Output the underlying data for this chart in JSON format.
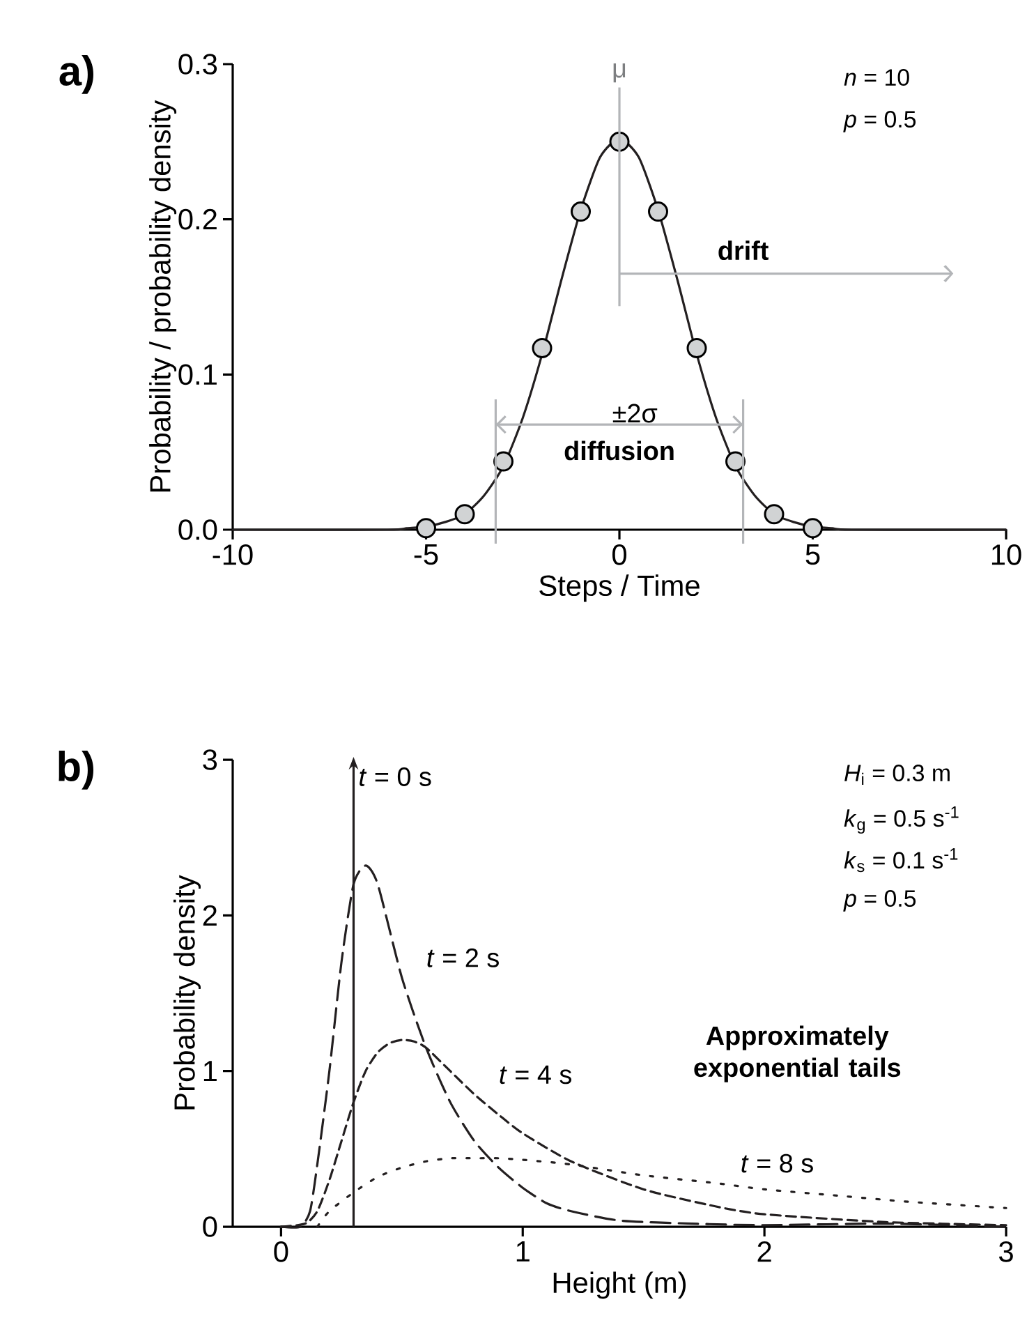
{
  "chart_data": [
    {
      "type": "line",
      "title": "a)",
      "xlabel": "Steps / Time",
      "ylabel": "Probability / probability density",
      "xlim": [
        -10,
        10
      ],
      "xticks": [
        -10,
        -5,
        0,
        5,
        10
      ],
      "ylim": [
        0,
        0.3
      ],
      "yticks": [
        {
          "value": 0,
          "label": "0.0"
        },
        0.1,
        0.2,
        0.3
      ],
      "series": [
        {
          "type": "line",
          "color": "#231f20",
          "x": [
            -10,
            -6,
            -5.5,
            -5,
            -4.5,
            -4,
            -3.5,
            -3,
            -2.5,
            -2,
            -1.5,
            -1,
            -0.5,
            0,
            0.5,
            1,
            1.5,
            2,
            2.5,
            3,
            3.5,
            4,
            4.5,
            5,
            5.5,
            6,
            10
          ],
          "values": [
            0,
            0,
            0.001,
            0.002,
            0.005,
            0.01,
            0.022,
            0.041,
            0.072,
            0.113,
            0.161,
            0.206,
            0.24,
            0.252,
            0.24,
            0.206,
            0.161,
            0.113,
            0.072,
            0.041,
            0.022,
            0.01,
            0.005,
            0.002,
            0.001,
            0,
            0
          ]
        },
        {
          "type": "scatter",
          "marker": "circle",
          "color": "#d1d3d4",
          "x": [
            -5,
            -4,
            -3,
            -2,
            -1,
            0,
            1,
            2,
            3,
            4,
            5
          ],
          "values": [
            0.001,
            0.01,
            0.044,
            0.117,
            0.205,
            0.25,
            0.205,
            0.117,
            0.044,
            0.01,
            0.001
          ]
        }
      ],
      "ref_lines": [
        {
          "axis": "x",
          "value": 0,
          "label": "μ",
          "color": "#b3b5b8"
        },
        {
          "axis": "x",
          "value": -3.2,
          "color": "#b3b5b8"
        },
        {
          "axis": "x",
          "value": 3.2,
          "color": "#b3b5b8"
        }
      ],
      "annotations": [
        "*n* = 10",
        "*p* = 0.5",
        "**drift**",
        "±2σ",
        "**diffusion**"
      ]
    },
    {
      "type": "line",
      "title": "b)",
      "xlabel": "Height (m)",
      "ylabel": "Probability density",
      "xlim": [
        -0.2,
        3
      ],
      "xticks": [
        0,
        1,
        2,
        3
      ],
      "ylim": [
        0,
        3
      ],
      "yticks": [
        0,
        1,
        2,
        3
      ],
      "series": [
        {
          "name": "*t* = 2 s",
          "color": "#231f20",
          "line_style": "dashed",
          "x": [
            0,
            0.08,
            0.12,
            0.15,
            0.2,
            0.25,
            0.3,
            0.35,
            0.4,
            0.5,
            0.6,
            0.7,
            0.8,
            0.9,
            1.0,
            1.1,
            1.2,
            1.4,
            1.7,
            2.0,
            2.5,
            3.0
          ],
          "values": [
            0,
            0,
            0.1,
            0.4,
            1.0,
            1.7,
            2.2,
            2.32,
            2.2,
            1.6,
            1.15,
            0.8,
            0.55,
            0.38,
            0.25,
            0.15,
            0.1,
            0.04,
            0.02,
            0.01,
            0.02,
            0
          ]
        },
        {
          "name": "*t* = 4 s",
          "color": "#231f20",
          "line_style": "dashed",
          "x": [
            0,
            0.1,
            0.15,
            0.2,
            0.25,
            0.3,
            0.35,
            0.4,
            0.45,
            0.5,
            0.55,
            0.6,
            0.7,
            0.8,
            0.9,
            1.0,
            1.2,
            1.5,
            1.8,
            2.0,
            2.5,
            3.0
          ],
          "values": [
            0,
            0.02,
            0.1,
            0.3,
            0.55,
            0.8,
            1.0,
            1.12,
            1.18,
            1.2,
            1.19,
            1.15,
            1.0,
            0.85,
            0.72,
            0.6,
            0.42,
            0.24,
            0.13,
            0.08,
            0.03,
            0.01
          ]
        },
        {
          "name": "*t* = 8 s",
          "color": "#231f20",
          "line_style": "dotted",
          "x": [
            0.15,
            0.2,
            0.3,
            0.4,
            0.5,
            0.6,
            0.7,
            0.8,
            0.9,
            1.0,
            1.2,
            1.5,
            1.8,
            2.0,
            2.3,
            2.6,
            3.0
          ],
          "values": [
            0,
            0.1,
            0.22,
            0.32,
            0.38,
            0.42,
            0.44,
            0.44,
            0.44,
            0.43,
            0.4,
            0.33,
            0.28,
            0.24,
            0.2,
            0.16,
            0.12
          ]
        }
      ],
      "ref_lines": [
        {
          "axis": "x",
          "value": 0.3,
          "label": "*t* = 0 s",
          "color": "#231f20"
        }
      ],
      "annotations": [
        "*H*$_{i}$ = 0.3 m",
        "*k*$_{g}$ = 0.5 s$^{-1}$",
        "*k*$_{s}$ = 0.1 s$^{-1}$",
        "*p* = 0.5",
        "**Approximately exponential tails**"
      ]
    }
  ]
}
